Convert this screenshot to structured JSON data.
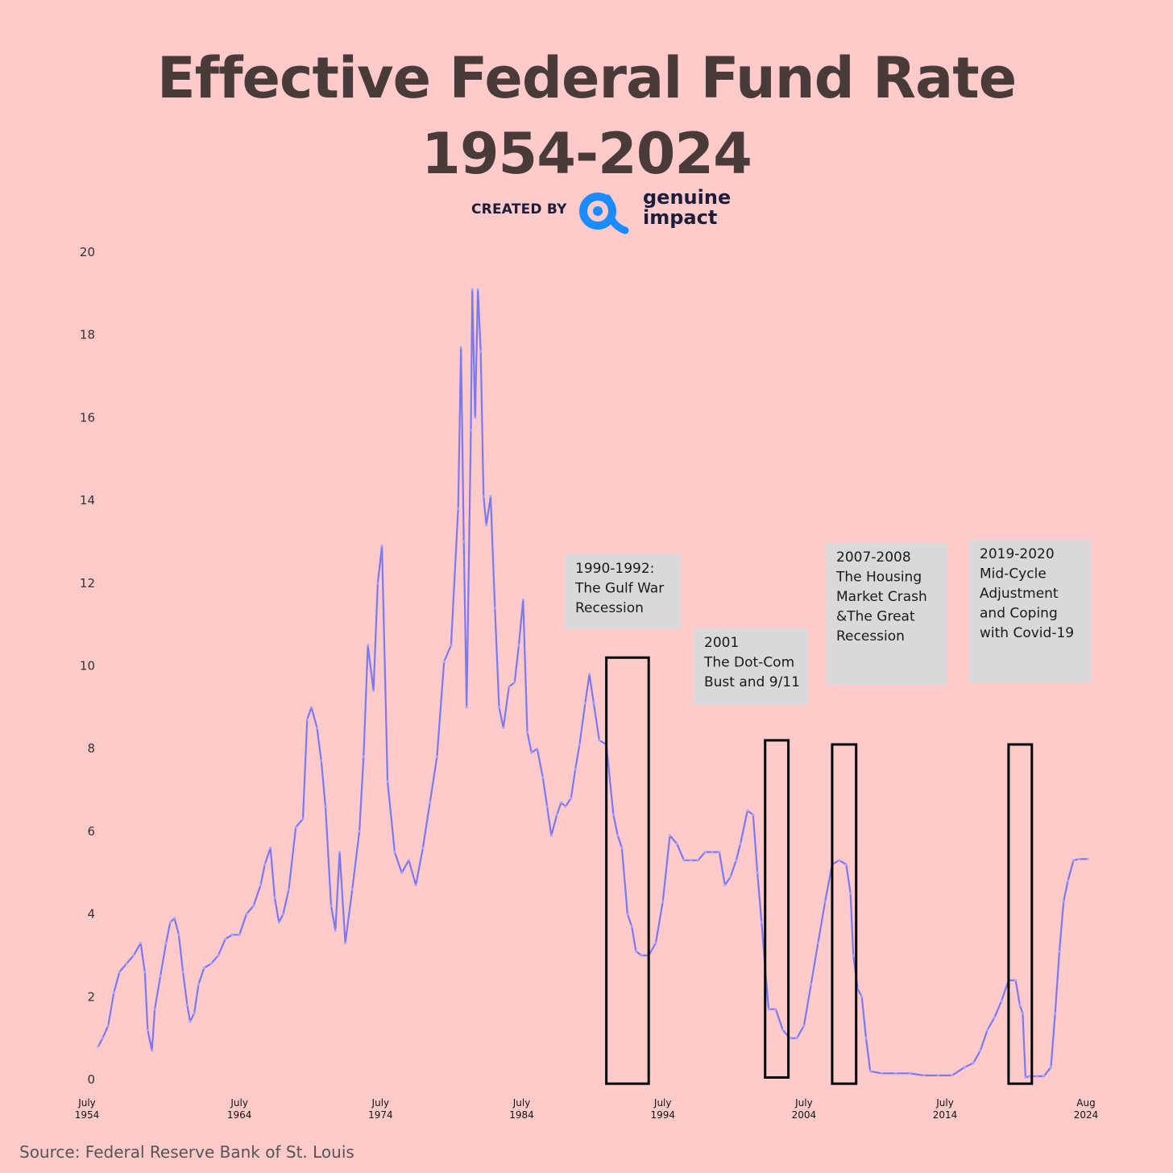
{
  "header": {
    "title_line1": "Effective Federal Fund Rate",
    "title_line2": "1954-2024",
    "created_by": "CREATED BY",
    "brand_line1": "genuine",
    "brand_line2": "impact"
  },
  "source": "Source: Federal Reserve Bank of St. Louis",
  "colors": {
    "background": "#ffcaca",
    "line": "#7b78f0",
    "brand": "#1a8cff",
    "annotation_box": "#d9d9d9"
  },
  "chart_data": {
    "type": "line",
    "title": "Effective Federal Fund Rate 1954-2024",
    "xlabel": "",
    "ylabel": "",
    "xlim": [
      1954.5,
      2024.6
    ],
    "ylim": [
      0,
      20
    ],
    "grid": false,
    "legend": "none",
    "y_ticks": [
      "0",
      "2",
      "4",
      "6",
      "8",
      "10",
      "12",
      "14",
      "16",
      "18",
      "20"
    ],
    "x_ticks": [
      {
        "top": "July",
        "bottom": "1954",
        "x": 1954.5
      },
      {
        "top": "July",
        "bottom": "1964",
        "x": 1964.5
      },
      {
        "top": "July",
        "bottom": "1974",
        "x": 1974.5
      },
      {
        "top": "July",
        "bottom": "1984",
        "x": 1984.5
      },
      {
        "top": "July",
        "bottom": "1994",
        "x": 1994.5
      },
      {
        "top": "July",
        "bottom": "2004",
        "x": 2004.5
      },
      {
        "top": "July",
        "bottom": "2014",
        "x": 2014.5
      },
      {
        "top": "Aug",
        "bottom": "2024",
        "x": 2024.6
      }
    ],
    "series": [
      {
        "name": "",
        "x": [
          1954.5,
          1954.8,
          1955.2,
          1955.6,
          1956.0,
          1956.5,
          1957.0,
          1957.5,
          1957.8,
          1958.0,
          1958.3,
          1958.5,
          1958.9,
          1959.3,
          1959.6,
          1959.9,
          1960.2,
          1960.5,
          1960.8,
          1961.0,
          1961.3,
          1961.6,
          1962.0,
          1962.5,
          1963.0,
          1963.5,
          1964.0,
          1964.5,
          1965.0,
          1965.5,
          1966.0,
          1966.3,
          1966.7,
          1967.0,
          1967.3,
          1967.6,
          1968.0,
          1968.5,
          1969.0,
          1969.3,
          1969.6,
          1970.0,
          1970.3,
          1970.6,
          1971.0,
          1971.3,
          1971.6,
          1972.0,
          1972.5,
          1973.0,
          1973.3,
          1973.6,
          1974.0,
          1974.3,
          1974.6,
          1975.0,
          1975.5,
          1976.0,
          1976.5,
          1977.0,
          1977.5,
          1978.0,
          1978.5,
          1979.0,
          1979.5,
          1980.0,
          1980.2,
          1980.4,
          1980.6,
          1980.9,
          1981.0,
          1981.2,
          1981.4,
          1981.6,
          1981.8,
          1982.0,
          1982.3,
          1982.6,
          1982.9,
          1983.2,
          1983.6,
          1984.0,
          1984.3,
          1984.6,
          1984.9,
          1985.2,
          1985.6,
          1986.0,
          1986.3,
          1986.6,
          1987.0,
          1987.3,
          1987.6,
          1988.0,
          1988.3,
          1988.6,
          1989.0,
          1989.3,
          1989.6,
          1990.0,
          1990.5,
          1991.0,
          1991.3,
          1991.6,
          1992.0,
          1992.3,
          1992.6,
          1993.0,
          1993.5,
          1994.0,
          1994.5,
          1995.0,
          1995.5,
          1996.0,
          1996.5,
          1997.0,
          1997.5,
          1998.0,
          1998.5,
          1998.9,
          1999.3,
          1999.7,
          2000.0,
          2000.5,
          2000.9,
          2001.2,
          2001.5,
          2001.8,
          2002.0,
          2002.5,
          2003.0,
          2003.5,
          2004.0,
          2004.5,
          2005.0,
          2005.5,
          2006.0,
          2006.5,
          2007.0,
          2007.5,
          2007.8,
          2008.0,
          2008.3,
          2008.6,
          2008.9,
          2009.2,
          2010.0,
          2011.0,
          2012.0,
          2013.0,
          2014.0,
          2015.0,
          2015.9,
          2016.5,
          2017.0,
          2017.5,
          2018.0,
          2018.5,
          2019.0,
          2019.5,
          2019.8,
          2020.0,
          2020.2,
          2020.5,
          2021.0,
          2021.5,
          2022.0,
          2022.3,
          2022.6,
          2022.9,
          2023.2,
          2023.6,
          2024.0,
          2024.6
        ],
        "values": [
          0.8,
          1.0,
          1.3,
          2.1,
          2.6,
          2.8,
          3.0,
          3.3,
          2.6,
          1.2,
          0.7,
          1.7,
          2.5,
          3.3,
          3.8,
          3.9,
          3.5,
          2.6,
          1.8,
          1.4,
          1.6,
          2.3,
          2.7,
          2.8,
          3.0,
          3.4,
          3.5,
          3.5,
          4.0,
          4.2,
          4.7,
          5.2,
          5.6,
          4.4,
          3.8,
          4.0,
          4.6,
          6.1,
          6.3,
          8.7,
          9.0,
          8.5,
          7.7,
          6.6,
          4.2,
          3.6,
          5.5,
          3.3,
          4.6,
          6.0,
          7.8,
          10.5,
          9.4,
          12.0,
          12.9,
          7.2,
          5.5,
          5.0,
          5.3,
          4.7,
          5.6,
          6.7,
          7.8,
          10.1,
          10.5,
          13.8,
          17.7,
          13.0,
          9.0,
          15.7,
          19.1,
          16.0,
          19.1,
          17.6,
          14.1,
          13.4,
          14.1,
          11.4,
          9.0,
          8.5,
          9.5,
          9.6,
          10.5,
          11.6,
          8.4,
          7.9,
          8.0,
          7.3,
          6.6,
          5.9,
          6.4,
          6.7,
          6.6,
          6.8,
          7.5,
          8.1,
          9.1,
          9.8,
          9.1,
          8.2,
          8.1,
          6.4,
          5.9,
          5.6,
          4.0,
          3.7,
          3.1,
          3.0,
          3.0,
          3.3,
          4.3,
          5.9,
          5.7,
          5.3,
          5.3,
          5.3,
          5.5,
          5.5,
          5.5,
          4.7,
          4.9,
          5.3,
          5.7,
          6.5,
          6.4,
          5.0,
          3.8,
          2.5,
          1.7,
          1.7,
          1.2,
          1.0,
          1.0,
          1.3,
          2.3,
          3.3,
          4.3,
          5.2,
          5.3,
          5.2,
          4.5,
          3.0,
          2.2,
          2.0,
          1.0,
          0.2,
          0.15,
          0.15,
          0.15,
          0.1,
          0.1,
          0.1,
          0.3,
          0.4,
          0.7,
          1.2,
          1.5,
          1.9,
          2.4,
          2.4,
          1.8,
          1.6,
          0.05,
          0.08,
          0.08,
          0.08,
          0.3,
          1.6,
          3.1,
          4.3,
          4.8,
          5.3,
          5.33,
          5.33
        ]
      }
    ],
    "annotations": [
      {
        "id": "gulf-war",
        "lines": [
          "1990-1992:",
          "The Gulf War",
          "Recession"
        ],
        "x0": 1990.5,
        "x1": 1993.5,
        "y0": -0.1,
        "y1": 10.2
      },
      {
        "id": "dotcom",
        "lines": [
          "2001",
          "The Dot-Com",
          "Bust and 9/11"
        ],
        "x0": 2001.75,
        "x1": 2003.4,
        "y0": 0.05,
        "y1": 8.2
      },
      {
        "id": "housing",
        "lines": [
          "2007-2008",
          "The Housing",
          "Market Crash",
          "&The Great",
          "Recession"
        ],
        "x0": 2006.5,
        "x1": 2008.2,
        "y0": -0.1,
        "y1": 8.1
      },
      {
        "id": "covid",
        "lines": [
          "2019-2020",
          "Mid-Cycle",
          "Adjustment",
          "and Coping",
          "with Covid-19"
        ],
        "x0": 2019.0,
        "x1": 2020.65,
        "y0": -0.1,
        "y1": 8.1
      }
    ]
  }
}
